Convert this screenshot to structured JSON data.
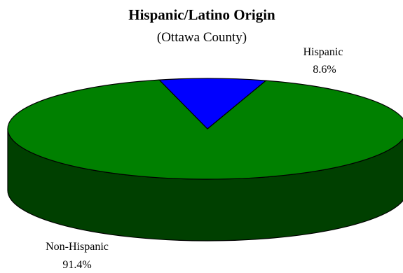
{
  "chart_data": {
    "type": "pie",
    "title": "Hispanic/Latino Origin",
    "subtitle": "(Ottawa County)",
    "slices": [
      {
        "label": "Hispanic",
        "value_label": "8.6%",
        "value": 8.6,
        "color": "#0000ff"
      },
      {
        "label": "Non-Hispanic",
        "value_label": "91.4%",
        "value": 91.4,
        "color": "#008000"
      }
    ],
    "side_color": "#004000",
    "three_d": true
  }
}
